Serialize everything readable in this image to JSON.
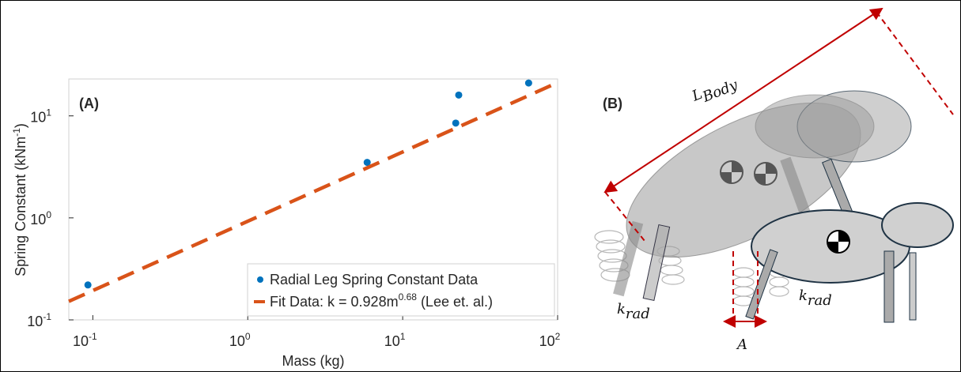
{
  "chart_data": {
    "type": "scatter",
    "panel_label": "(A)",
    "xlabel": "Mass (kg)",
    "ylabel": {
      "text": "Spring Constant (kNm",
      "exponent": "-1",
      "tail": ")"
    },
    "xscale": "log",
    "yscale": "log",
    "xlim": [
      0.07,
      100
    ],
    "ylim": [
      0.1,
      23
    ],
    "xticks": [
      {
        "value": 0.1,
        "label": "10",
        "exponent": "-1"
      },
      {
        "value": 1,
        "label": "10",
        "exponent": "0"
      },
      {
        "value": 10,
        "label": "10",
        "exponent": "1"
      },
      {
        "value": 100,
        "label": "10",
        "exponent": "2"
      }
    ],
    "yticks": [
      {
        "value": 0.1,
        "label": "10",
        "exponent": "-1"
      },
      {
        "value": 1,
        "label": "10",
        "exponent": "0"
      },
      {
        "value": 10,
        "label": "10",
        "exponent": "1"
      }
    ],
    "grid": false,
    "legend": "lower right",
    "series": [
      {
        "name": "Radial Leg Spring Constant Data",
        "style": "points",
        "color": "#0072bd",
        "x": [
          0.093,
          5.9,
          22,
          23,
          65
        ],
        "values": [
          0.22,
          3.5,
          8.5,
          16,
          21
        ]
      },
      {
        "name": "Fit Data: k = 0.928m",
        "name_exponent": "0.68",
        "name_tail": " (Lee et. al.)",
        "style": "dashed",
        "color": "#d95319",
        "x": [
          0.07,
          100
        ],
        "values": [
          0.152,
          21.2
        ]
      }
    ]
  },
  "panel_b": {
    "panel_label": "(B)",
    "body_length": "L",
    "body_length_sub": "Body",
    "spring": "k",
    "spring_sub": "rad",
    "amplitude": "A"
  }
}
